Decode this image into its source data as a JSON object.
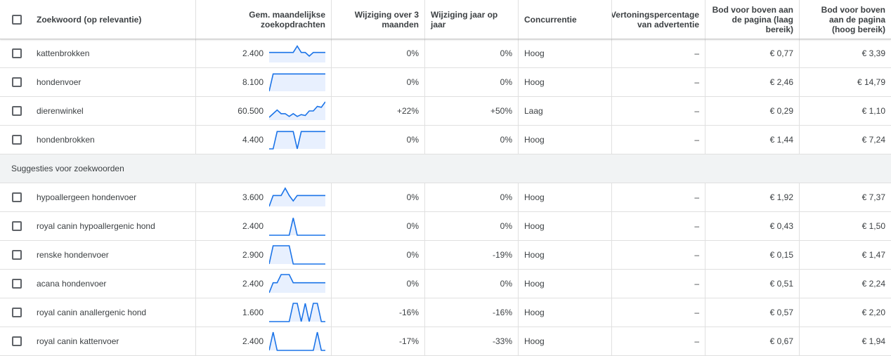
{
  "header": {
    "keyword": "Zoekwoord (op relevantie)",
    "volume": "Gem. maandelijkse zoekopdrachten",
    "change_3m": "Wijziging over 3 maanden",
    "change_yoy": "Wijziging jaar op jaar",
    "competition": "Concurrentie",
    "impression_share": "Vertoningspercentage van advertentie",
    "bid_low": "Bod voor boven aan de pagina (laag bereik)",
    "bid_high": "Bod voor boven aan de pagina (hoog bereik)"
  },
  "section_label": "Suggesties voor zoekwoorden",
  "colors": {
    "spark_line": "#1a73e8",
    "spark_fill": "#e8f0fe"
  },
  "rows": [
    {
      "keyword": "kattenbrokken",
      "volume": "2.400",
      "change_3m": "0%",
      "change_yoy": "0%",
      "competition": "Hoog",
      "impression_share": "–",
      "bid_low": "€ 0,77",
      "bid_high": "€ 3,39",
      "trend": [
        0.55,
        0.55,
        0.55,
        0.55,
        0.55,
        0.55,
        0.55,
        0.9,
        0.55,
        0.55,
        0.35,
        0.55,
        0.55,
        0.55,
        0.55
      ]
    },
    {
      "keyword": "hondenvoer",
      "volume": "8.100",
      "change_3m": "0%",
      "change_yoy": "0%",
      "competition": "Hoog",
      "impression_share": "–",
      "bid_low": "€ 2,46",
      "bid_high": "€ 14,79",
      "trend": [
        0.0,
        0.95,
        0.95,
        0.95,
        0.95,
        0.95,
        0.95,
        0.95,
        0.95,
        0.95,
        0.95,
        0.95,
        0.95,
        0.95,
        0.95
      ]
    },
    {
      "keyword": "dierenwinkel",
      "volume": "60.500",
      "change_3m": "+22%",
      "change_yoy": "+50%",
      "competition": "Laag",
      "impression_share": "–",
      "bid_low": "€ 0,29",
      "bid_high": "€ 1,10",
      "trend": [
        0.15,
        0.35,
        0.55,
        0.35,
        0.35,
        0.2,
        0.35,
        0.2,
        0.3,
        0.25,
        0.5,
        0.5,
        0.75,
        0.7,
        1.0
      ]
    },
    {
      "keyword": "hondenbrokken",
      "volume": "4.400",
      "change_3m": "0%",
      "change_yoy": "0%",
      "competition": "Hoog",
      "impression_share": "–",
      "bid_low": "€ 1,44",
      "bid_high": "€ 7,24",
      "trend": [
        0.0,
        0.0,
        0.95,
        0.95,
        0.95,
        0.95,
        0.95,
        0.0,
        0.95,
        0.95,
        0.95,
        0.95,
        0.95,
        0.95,
        0.95
      ]
    },
    {
      "keyword": "hypoallergeen hondenvoer",
      "volume": "3.600",
      "change_3m": "0%",
      "change_yoy": "0%",
      "competition": "Hoog",
      "impression_share": "–",
      "bid_low": "€ 1,92",
      "bid_high": "€ 7,37",
      "trend": [
        0.0,
        0.6,
        0.6,
        0.6,
        1.0,
        0.6,
        0.3,
        0.6,
        0.6,
        0.6,
        0.6,
        0.6,
        0.6,
        0.6,
        0.6
      ]
    },
    {
      "keyword": "royal canin hypoallergenic hond",
      "volume": "2.400",
      "change_3m": "0%",
      "change_yoy": "0%",
      "competition": "Hoog",
      "impression_share": "–",
      "bid_low": "€ 0,43",
      "bid_high": "€ 1,50",
      "trend": [
        0.0,
        0.0,
        0.0,
        0.0,
        0.0,
        0.0,
        0.95,
        0.0,
        0.0,
        0.0,
        0.0,
        0.0,
        0.0,
        0.0,
        0.0
      ]
    },
    {
      "keyword": "renske hondenvoer",
      "volume": "2.900",
      "change_3m": "0%",
      "change_yoy": "-19%",
      "competition": "Hoog",
      "impression_share": "–",
      "bid_low": "€ 0,15",
      "bid_high": "€ 1,47",
      "trend": [
        0.0,
        1.0,
        1.0,
        1.0,
        1.0,
        1.0,
        0.0,
        0.0,
        0.0,
        0.0,
        0.0,
        0.0,
        0.0,
        0.0,
        0.0
      ]
    },
    {
      "keyword": "acana hondenvoer",
      "volume": "2.400",
      "change_3m": "0%",
      "change_yoy": "0%",
      "competition": "Hoog",
      "impression_share": "–",
      "bid_low": "€ 0,51",
      "bid_high": "€ 2,24",
      "trend": [
        0.0,
        0.55,
        0.55,
        1.0,
        1.0,
        1.0,
        0.55,
        0.55,
        0.55,
        0.55,
        0.55,
        0.55,
        0.55,
        0.55,
        0.55
      ]
    },
    {
      "keyword": "royal canin anallergenic hond",
      "volume": "1.600",
      "change_3m": "-16%",
      "change_yoy": "-16%",
      "competition": "Hoog",
      "impression_share": "–",
      "bid_low": "€ 0,57",
      "bid_high": "€ 2,20",
      "trend": [
        0.0,
        0.0,
        0.0,
        0.0,
        0.0,
        0.0,
        1.0,
        1.0,
        0.0,
        1.0,
        0.0,
        1.0,
        1.0,
        0.0,
        0.0
      ]
    },
    {
      "keyword": "royal canin kattenvoer",
      "volume": "2.400",
      "change_3m": "-17%",
      "change_yoy": "-33%",
      "competition": "Hoog",
      "impression_share": "–",
      "bid_low": "€ 0,67",
      "bid_high": "€ 1,94",
      "trend": [
        0.0,
        1.0,
        0.0,
        0.0,
        0.0,
        0.0,
        0.0,
        0.0,
        0.0,
        0.0,
        0.0,
        0.0,
        1.0,
        0.0,
        0.0
      ]
    }
  ]
}
